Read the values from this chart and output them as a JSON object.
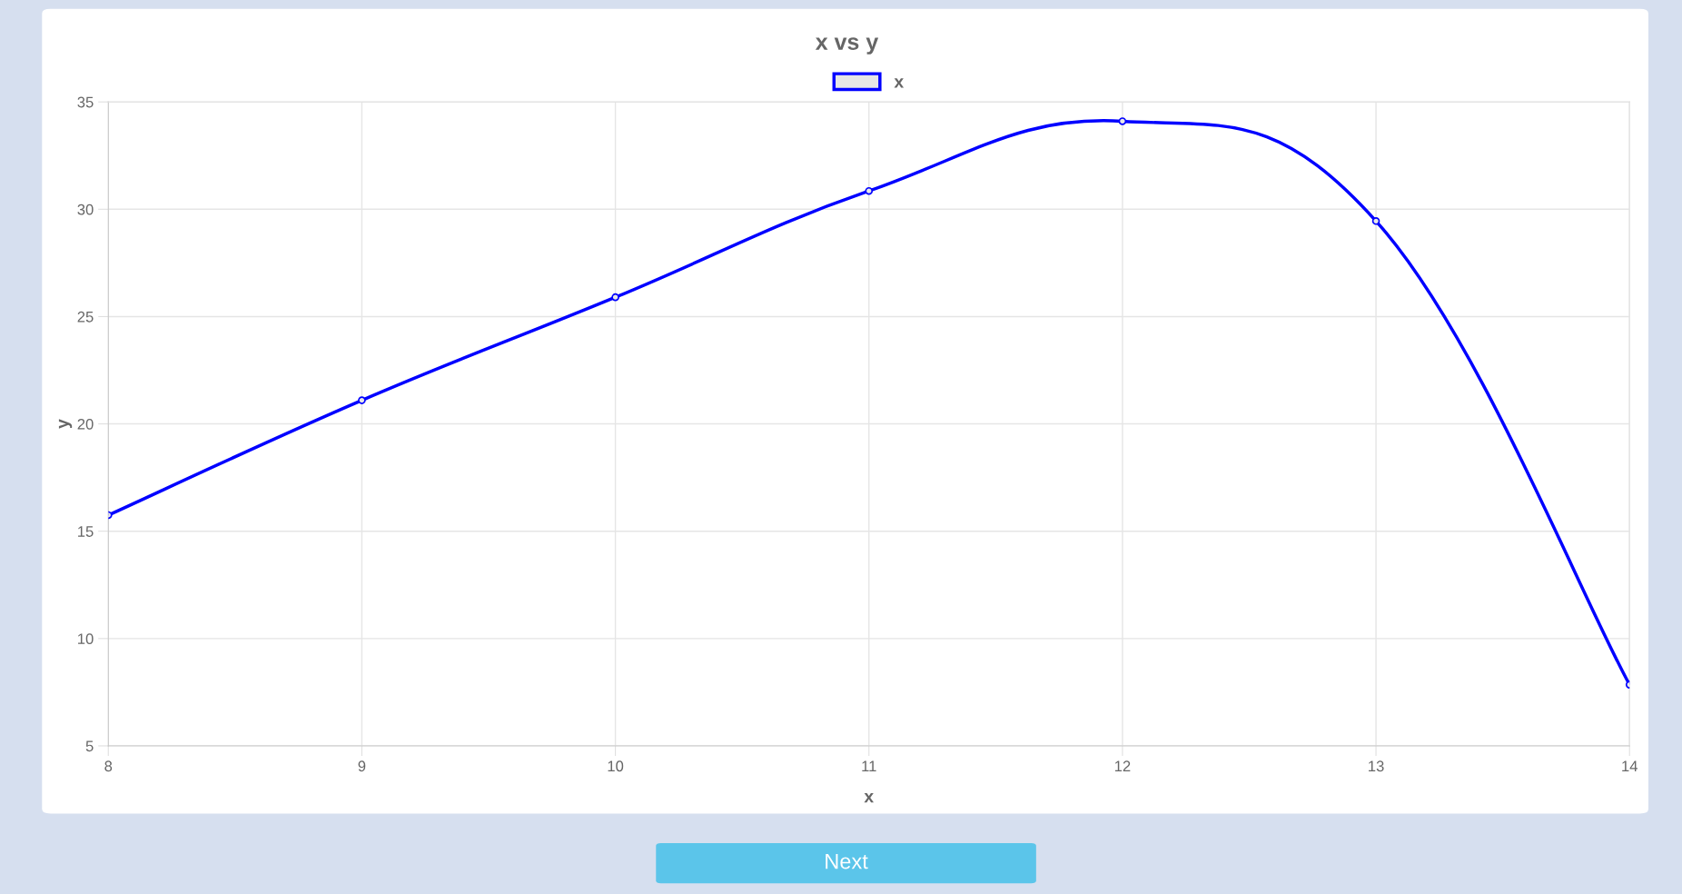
{
  "chart_data": {
    "type": "line",
    "title": "x vs y",
    "xlabel": "x",
    "ylabel": "y",
    "x": [
      8,
      9,
      10,
      11,
      12,
      13,
      14
    ],
    "series": [
      {
        "name": "x",
        "color": "#0000ff",
        "values": [
          15.75,
          21.1,
          25.9,
          30.85,
          34.1,
          29.45,
          7.85
        ]
      }
    ],
    "xlim": [
      8,
      14
    ],
    "xticks": [
      8,
      9,
      10,
      11,
      12,
      13,
      14
    ],
    "ylim": [
      5,
      35
    ],
    "yticks": [
      5,
      10,
      15,
      20,
      25,
      30,
      35
    ],
    "grid": true,
    "legend": "top",
    "marker": "circle",
    "line_style": "solid",
    "annotations": [
      "Next"
    ]
  }
}
